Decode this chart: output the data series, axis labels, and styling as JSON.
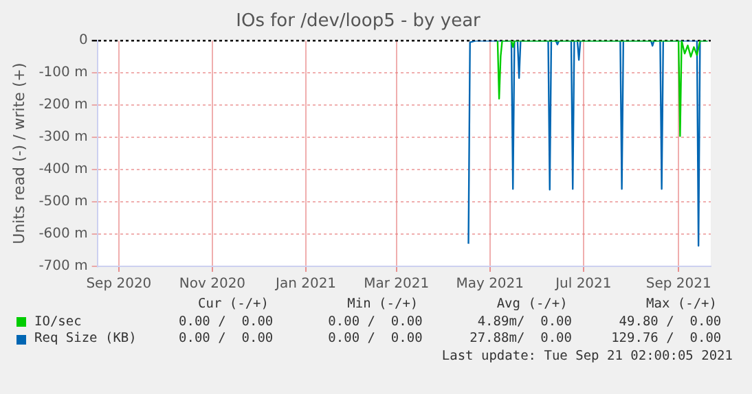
{
  "chart_data": {
    "type": "line",
    "title": "IOs for /dev/loop5 - by year",
    "ylabel": "Units read (-) / write (+)",
    "xlim": [
      "2020-08-18",
      "2021-09-22"
    ],
    "xticks": [
      {
        "value": "2020-09-01",
        "label": "Sep 2020"
      },
      {
        "value": "2020-11-01",
        "label": "Nov 2020"
      },
      {
        "value": "2021-01-01",
        "label": "Jan 2021"
      },
      {
        "value": "2021-03-01",
        "label": "Mar 2021"
      },
      {
        "value": "2021-05-01",
        "label": "May 2021"
      },
      {
        "value": "2021-07-01",
        "label": "Jul 2021"
      },
      {
        "value": "2021-09-01",
        "label": "Sep 2021"
      }
    ],
    "ylim": [
      -700,
      0
    ],
    "yticks": [
      {
        "value": 0,
        "label": "0"
      },
      {
        "value": -100,
        "label": "-100 m"
      },
      {
        "value": -200,
        "label": "-200 m"
      },
      {
        "value": -300,
        "label": "-300 m"
      },
      {
        "value": -400,
        "label": "-400 m"
      },
      {
        "value": -500,
        "label": "-500 m"
      },
      {
        "value": -600,
        "label": "-600 m"
      },
      {
        "value": -700,
        "label": "-700 m"
      }
    ],
    "grid": true,
    "legend": "bottom",
    "marker": "none",
    "series": [
      {
        "name": "IO/sec",
        "color": "#00cc00",
        "x": [
          "2021-05-06",
          "2021-05-07",
          "2021-05-08",
          "2021-05-09",
          "2021-05-15",
          "2021-05-16",
          "2021-05-17",
          "2021-09-01",
          "2021-09-02",
          "2021-09-03",
          "2021-09-05",
          "2021-09-07",
          "2021-09-09",
          "2021-09-11",
          "2021-09-13",
          "2021-09-15",
          "2021-09-20"
        ],
        "values": [
          0,
          -180,
          -48,
          0,
          0,
          -20,
          0,
          0,
          -296,
          0,
          -40,
          -15,
          -50,
          -20,
          -45,
          0,
          0
        ]
      },
      {
        "name": "Req Size (KB)",
        "color": "#0066b3",
        "x": [
          "2021-04-17",
          "2021-04-18",
          "2021-04-22",
          "2021-05-15",
          "2021-05-16",
          "2021-05-17",
          "2021-05-19",
          "2021-05-20",
          "2021-05-21",
          "2021-06-08",
          "2021-06-09",
          "2021-06-10",
          "2021-06-13",
          "2021-06-14",
          "2021-06-15",
          "2021-06-23",
          "2021-06-24",
          "2021-06-25",
          "2021-06-27",
          "2021-06-28",
          "2021-06-29",
          "2021-07-25",
          "2021-07-26",
          "2021-07-27",
          "2021-08-14",
          "2021-08-15",
          "2021-08-16",
          "2021-08-20",
          "2021-08-21",
          "2021-08-22",
          "2021-09-13",
          "2021-09-14",
          "2021-09-15",
          "2021-09-20"
        ],
        "values": [
          -630,
          -5,
          0,
          0,
          -460,
          0,
          0,
          -116,
          0,
          0,
          -462,
          0,
          0,
          -12,
          0,
          0,
          -460,
          0,
          0,
          -60,
          0,
          0,
          -460,
          0,
          0,
          -16,
          0,
          0,
          -460,
          0,
          0,
          -636,
          0,
          0
        ]
      }
    ],
    "annotations": [
      "Cur (-/+)          Min (-/+)          Avg (-/+)          Max (-/+)",
      "0.00 /  0.00       0.00 /  0.00       4.89m/  0.00      49.80 /  0.00",
      "0.00 /  0.00       0.00 /  0.00      27.88m/  0.00     129.76 /  0.00",
      "Last update: Tue Sep 21 02:00:05 2021"
    ]
  }
}
